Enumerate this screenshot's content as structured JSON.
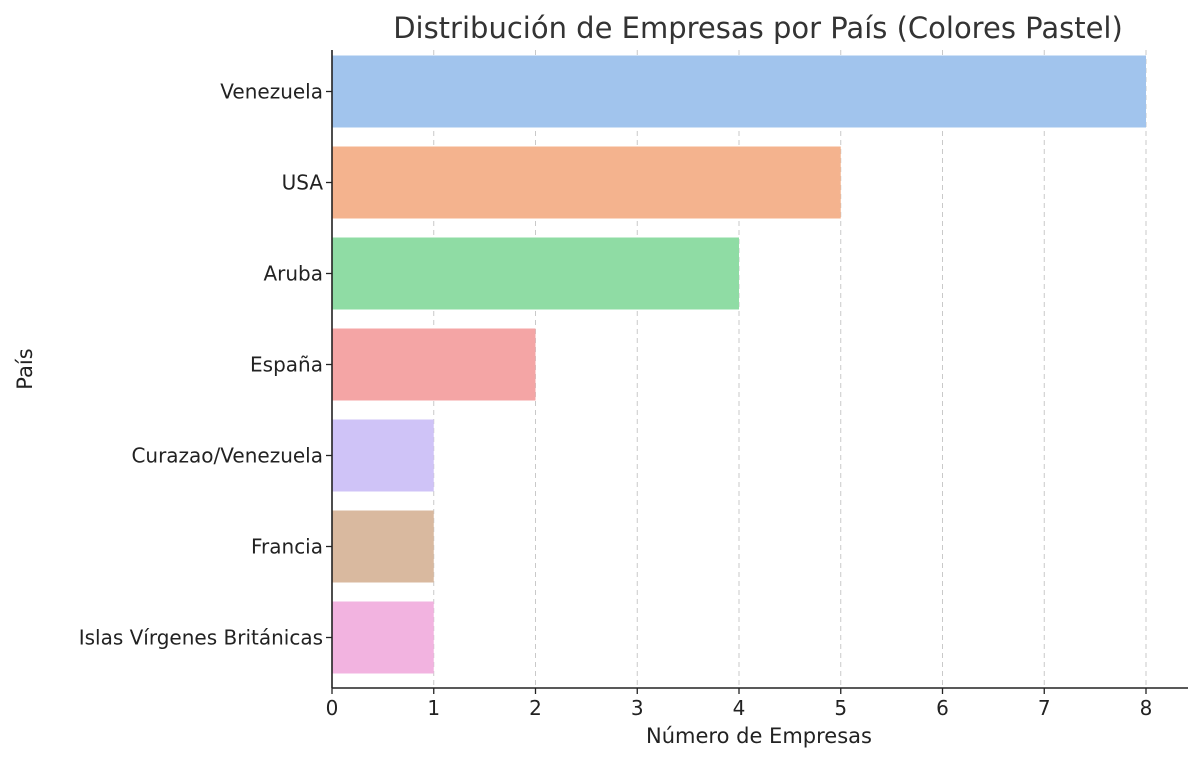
{
  "chart_data": {
    "type": "bar",
    "orientation": "horizontal",
    "title": "Distribución de Empresas por País (Colores Pastel)",
    "xlabel": "Número de Empresas",
    "ylabel": "País",
    "categories": [
      "Venezuela",
      "USA",
      "Aruba",
      "España",
      "Curazao/Venezuela",
      "Francia",
      "Islas Vírgenes Británicas"
    ],
    "values": [
      8,
      5,
      4,
      2,
      1,
      1,
      1
    ],
    "colors": [
      "#a1c4ed",
      "#f4b38e",
      "#8fdca4",
      "#f4a5a5",
      "#cfc3f7",
      "#d9b99f",
      "#f2b3e0"
    ],
    "xlim": [
      0,
      8
    ],
    "xticks": [
      "0",
      "1",
      "2",
      "3",
      "4",
      "5",
      "6",
      "7",
      "8"
    ],
    "grid": "vertical-dashed",
    "legend": "none"
  }
}
